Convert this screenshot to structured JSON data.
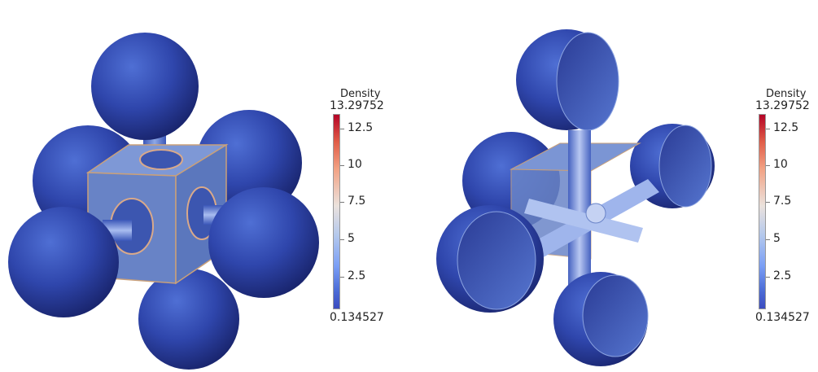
{
  "colorbar_left": {
    "title": "Density",
    "max": "13.29752",
    "ticks": [
      "12.5",
      "10",
      "7.5",
      "5",
      "2.5"
    ],
    "min": "0.134527"
  },
  "colorbar_right": {
    "title": "Density",
    "max": "13.29752",
    "ticks": [
      "12.5",
      "10",
      "7.5",
      "5",
      "2.5"
    ],
    "min": "0.134527"
  },
  "colors": {
    "sphere_dark": "#1e2a7a",
    "sphere_mid": "#2f44a8",
    "sphere_light": "#4a66cc",
    "cube": "#6c87c9",
    "density_high": "#b40426",
    "density_low": "#3b4cc0"
  }
}
